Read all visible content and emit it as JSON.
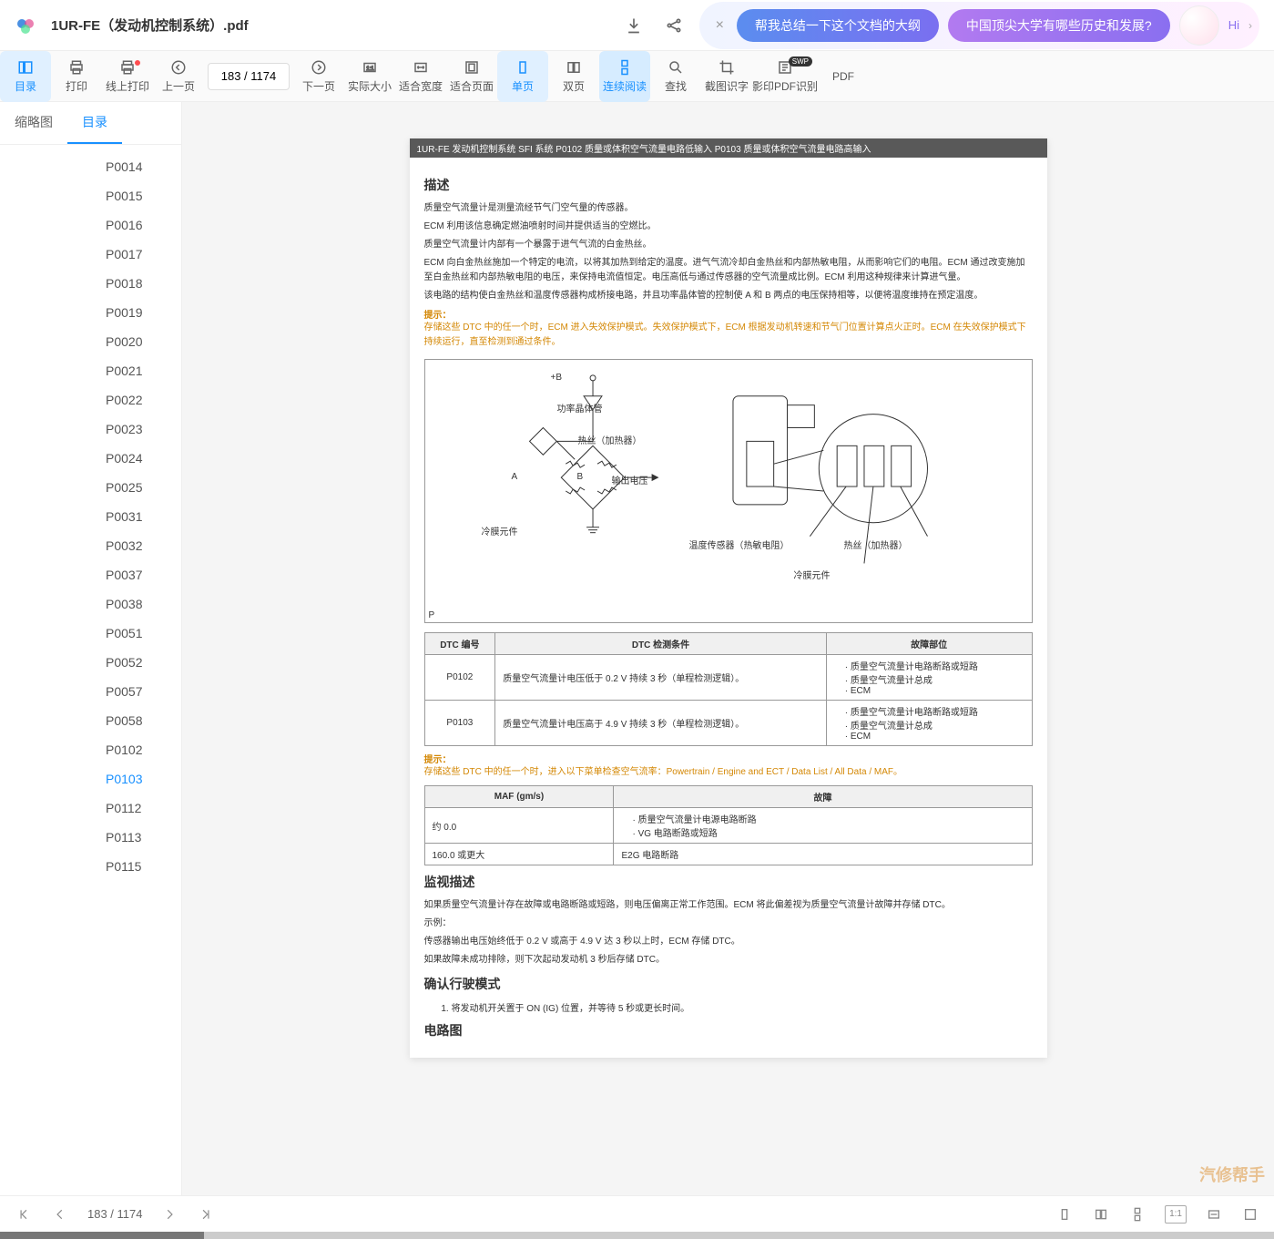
{
  "header": {
    "doc_title": "1UR-FE（发动机控制系统）.pdf",
    "ai_pills": [
      "帮我总结一下这个文档的大纲",
      "中国顶尖大学有哪些历史和发展?"
    ],
    "hi_text": "Hi"
  },
  "toolbar": {
    "items": [
      {
        "label": "目录",
        "icon": "panel"
      },
      {
        "label": "打印",
        "icon": "print"
      },
      {
        "label": "线上打印",
        "icon": "print-online"
      },
      {
        "label": "上一页",
        "icon": "prev"
      },
      {
        "label": "下一页",
        "icon": "next"
      },
      {
        "label": "实际大小",
        "icon": "size-actual"
      },
      {
        "label": "适合宽度",
        "icon": "fit-width"
      },
      {
        "label": "适合页面",
        "icon": "fit-page"
      },
      {
        "label": "单页",
        "icon": "single"
      },
      {
        "label": "双页",
        "icon": "double"
      },
      {
        "label": "连续阅读",
        "icon": "continuous"
      },
      {
        "label": "查找",
        "icon": "search"
      },
      {
        "label": "截图识字",
        "icon": "crop"
      },
      {
        "label": "影印PDF识别",
        "icon": "ocr"
      },
      {
        "label": "PDF",
        "icon": "pdf"
      }
    ],
    "page_indicator": "183 / 1174"
  },
  "sidebar": {
    "tabs": [
      "缩略图",
      "目录"
    ],
    "active_tab": 1,
    "toc": [
      "P0014",
      "P0015",
      "P0016",
      "P0017",
      "P0018",
      "P0019",
      "P0020",
      "P0021",
      "P0022",
      "P0023",
      "P0024",
      "P0025",
      "P0031",
      "P0032",
      "P0037",
      "P0038",
      "P0051",
      "P0052",
      "P0057",
      "P0058",
      "P0102",
      "P0103",
      "P0112",
      "P0113",
      "P0115"
    ],
    "current_toc": "P0103"
  },
  "document": {
    "header_bar": "1UR-FE 发动机控制系统  SFI 系统  P0102  质量或体积空气流量电路低输入  P0103  质量或体积空气流量电路高输入",
    "sec_desc": "描述",
    "desc_p1": "质量空气流量计是测量流经节气门空气量的传感器。",
    "desc_p2": "ECM 利用该信息确定燃油喷射时间并提供适当的空燃比。",
    "desc_p3": "质量空气流量计内部有一个暴露于进气气流的白金热丝。",
    "desc_p4": "ECM 向白金热丝施加一个特定的电流，以将其加热到给定的温度。进气气流冷却白金热丝和内部热敏电阻，从而影响它们的电阻。ECM 通过改变施加至白金热丝和内部热敏电阻的电压，来保持电流值恒定。电压高低与通过传感器的空气流量成比例。ECM 利用这种规律来计算进气量。",
    "desc_p5": "该电路的结构使白金热丝和温度传感器构成桥接电路，并且功率晶体管的控制使 A 和 B 两点的电压保持相等，以便将温度维持在预定温度。",
    "hint1_label": "提示：",
    "hint1_text": "存储这些 DTC 中的任一个时，ECM 进入失效保护模式。失效保护模式下，ECM 根据发动机转速和节气门位置计算点火正时。ECM 在失效保护模式下持续运行，直至检测到通过条件。",
    "diagram": {
      "plus_b": "+B",
      "power_transistor": "功率晶体管",
      "heater": "热丝（加热器）",
      "output_voltage": "输出电压",
      "cold_film": "冷膜元件",
      "temp_sensor": "温度传感器（热敏电阻）",
      "heater2": "热丝（加热器）",
      "cold_film2": "冷膜元件",
      "node_a": "A",
      "node_b": "B",
      "p_mark": "P"
    },
    "table1": {
      "headers": [
        "DTC 编号",
        "DTC 检测条件",
        "故障部位"
      ],
      "rows": [
        {
          "code": "P0102",
          "cond": "质量空气流量计电压低于 0.2 V 持续 3 秒（单程检测逻辑）。",
          "fault": [
            "质量空气流量计电路断路或短路",
            "质量空气流量计总成",
            "ECM"
          ]
        },
        {
          "code": "P0103",
          "cond": "质量空气流量计电压高于 4.9 V 持续 3 秒（单程检测逻辑）。",
          "fault": [
            "质量空气流量计电路断路或短路",
            "质量空气流量计总成",
            "ECM"
          ]
        }
      ]
    },
    "hint2_label": "提示：",
    "hint2_text": "存储这些 DTC 中的任一个时，进入以下菜单检查空气流率：Powertrain / Engine and ECT / Data List / All Data / MAF。",
    "table2": {
      "headers": [
        "MAF (gm/s)",
        "故障"
      ],
      "rows": [
        {
          "maf": "约 0.0",
          "fault_list": [
            "质量空气流量计电源电路断路",
            "VG 电路断路或短路"
          ]
        },
        {
          "maf": "160.0 或更大",
          "fault_text": "E2G 电路断路"
        }
      ]
    },
    "sec_monitor": "监视描述",
    "mon_p1": "如果质量空气流量计存在故障或电路断路或短路，则电压偏离正常工作范围。ECM 将此偏差视为质量空气流量计故障并存储 DTC。",
    "mon_p2": "示例：",
    "mon_p3": "传感器输出电压始终低于 0.2 V 或高于 4.9 V 达 3 秒以上时，ECM 存储 DTC。",
    "mon_p4": "如果故障未成功排除，则下次起动发动机 3 秒后存储 DTC。",
    "sec_confirm": "确认行驶模式",
    "step1": "将发动机开关置于 ON (IG) 位置，并等待 5 秒或更长时间。",
    "sec_circuit": "电路图"
  },
  "bottombar": {
    "page_counter": "183 / 1174"
  },
  "watermark": "汽修帮手",
  "colors": {
    "accent": "#1890ff",
    "hint": "#d48806"
  }
}
